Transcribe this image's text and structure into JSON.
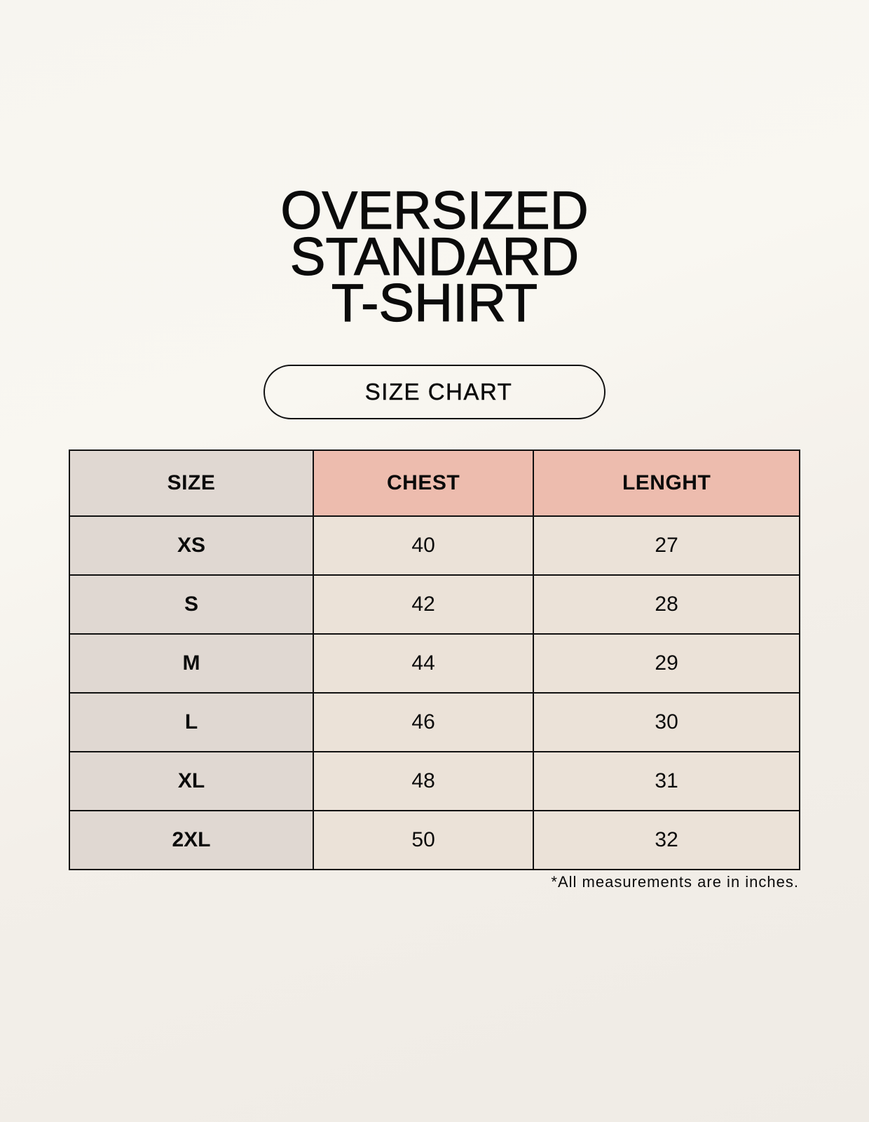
{
  "title_lines": [
    "OVERSIZED",
    "STANDARD",
    "T-SHIRT"
  ],
  "subtitle": "SIZE CHART",
  "table": {
    "headers": [
      "SIZE",
      "CHEST",
      "LENGHT"
    ],
    "rows": [
      [
        "XS",
        "40",
        "27"
      ],
      [
        "S",
        "42",
        "28"
      ],
      [
        "M",
        "44",
        "29"
      ],
      [
        "L",
        "46",
        "30"
      ],
      [
        "XL",
        "48",
        "31"
      ],
      [
        "2XL",
        "50",
        "32"
      ]
    ]
  },
  "footnote": "*All measurements are in inches.",
  "colors": {
    "size_column": "#e0d8d2",
    "header_accent": "#edbcae",
    "cell": "#ebe2d8"
  }
}
